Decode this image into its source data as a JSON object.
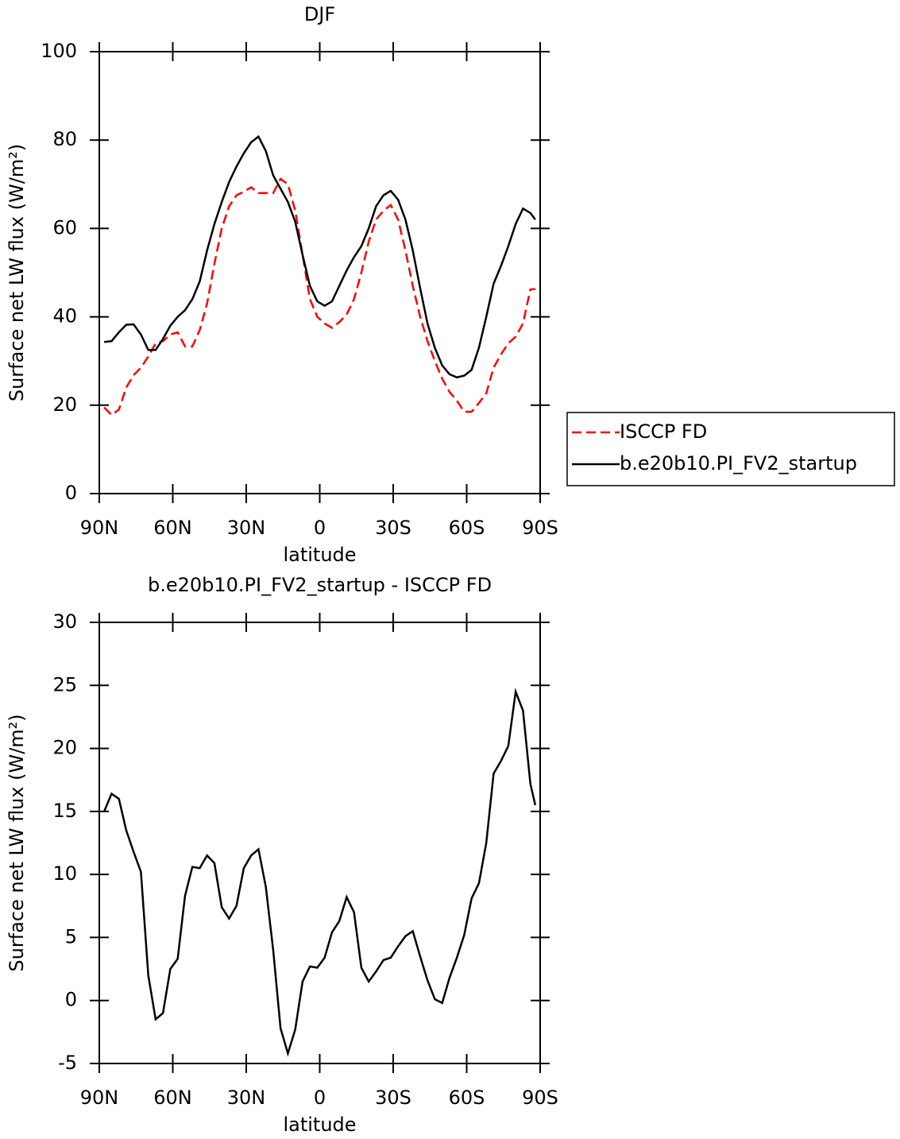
{
  "chart_data": [
    {
      "type": "line",
      "title": "DJF",
      "xlabel": "latitude",
      "ylabel": "Surface net LW flux (W/m²)",
      "x": [
        88,
        85,
        82,
        79,
        76,
        73,
        70,
        67,
        64,
        61,
        58,
        55,
        52,
        49,
        46,
        43,
        40,
        37,
        34,
        31,
        28,
        25,
        22,
        19,
        16,
        13,
        10,
        7,
        4,
        1,
        -2,
        -5,
        -8,
        -11,
        -14,
        -17,
        -20,
        -23,
        -26,
        -29,
        -32,
        -35,
        -38,
        -41,
        -44,
        -47,
        -50,
        -53,
        -56,
        -59,
        -62,
        -65,
        -68,
        -71,
        -74,
        -77,
        -80,
        -83,
        -86,
        -88
      ],
      "series": [
        {
          "name": "ISCCP FD",
          "color": "#ff0000",
          "dash": true,
          "values": [
            19.5,
            17.8,
            19,
            24,
            26.8,
            28.5,
            31,
            34,
            34.5,
            36,
            36.5,
            33.3,
            33.3,
            37,
            43,
            52,
            60,
            65,
            67.5,
            68.3,
            69.3,
            68,
            68,
            68,
            71.2,
            70,
            64,
            54,
            44,
            40,
            38.5,
            37.5,
            38.8,
            40.5,
            44,
            50,
            57,
            62,
            64,
            65.3,
            62,
            55,
            47,
            40,
            34.5,
            30,
            26,
            23,
            21,
            18.5,
            18.5,
            20.5,
            22.7,
            28.5,
            31.5,
            34,
            35.5,
            38.5,
            46.2,
            46.3
          ]
        },
        {
          "name": "b.e20b10.PI_FV2_startup",
          "color": "#000000",
          "dash": false,
          "values": [
            34.3,
            34.5,
            36.5,
            38.2,
            38.3,
            36,
            32.5,
            32.5,
            35,
            38,
            40,
            41.5,
            44,
            48,
            55,
            61,
            66,
            70.5,
            74,
            77,
            79.5,
            80.8,
            77.5,
            72,
            69,
            66,
            61.5,
            54,
            47,
            43.5,
            42.5,
            43.5,
            47,
            50.5,
            53.5,
            56,
            60,
            65,
            67.5,
            68.5,
            66.5,
            62,
            55,
            46.5,
            38.5,
            33,
            29,
            27,
            26.3,
            26.7,
            28,
            33,
            40,
            47.5,
            51.5,
            56,
            61,
            64.5,
            63.5,
            62
          ]
        }
      ],
      "xlim": [
        90,
        -90
      ],
      "xticks": [
        {
          "value": 90,
          "label": "90N"
        },
        {
          "value": 60,
          "label": "60N"
        },
        {
          "value": 30,
          "label": "30N"
        },
        0,
        {
          "value": -30,
          "label": "30S"
        },
        {
          "value": -60,
          "label": "60S"
        },
        {
          "value": -90,
          "label": "90S"
        }
      ],
      "ylim": [
        0,
        100
      ],
      "yticks": [
        0,
        20,
        40,
        60,
        80,
        100
      ],
      "legend": "right"
    },
    {
      "type": "line",
      "title": "b.e20b10.PI_FV2_startup - ISCCP FD",
      "xlabel": "latitude",
      "ylabel": "Surface net LW flux (W/m²)",
      "x": [
        88,
        85,
        82,
        79,
        76,
        73,
        70,
        67,
        64,
        61,
        58,
        55,
        52,
        49,
        46,
        43,
        40,
        37,
        34,
        31,
        28,
        25,
        22,
        19,
        16,
        13,
        10,
        7,
        4,
        1,
        -2,
        -5,
        -8,
        -11,
        -14,
        -17,
        -20,
        -23,
        -26,
        -29,
        -32,
        -35,
        -38,
        -41,
        -44,
        -47,
        -50,
        -53,
        -56,
        -59,
        -62,
        -65,
        -68,
        -71,
        -74,
        -77,
        -80,
        -83,
        -86,
        -88
      ],
      "series": [
        {
          "color": "#000000",
          "dash": false,
          "values": [
            15,
            16.4,
            16,
            13.5,
            11.8,
            10.2,
            2,
            -1.5,
            -1,
            2.5,
            3.3,
            8.3,
            10.6,
            10.5,
            11.5,
            10.9,
            7.4,
            6.5,
            7.5,
            10.5,
            11.5,
            12,
            9,
            4,
            -2.2,
            -4.2,
            -2.3,
            1.5,
            2.7,
            2.6,
            3.4,
            5.4,
            6.3,
            8.2,
            7,
            2.6,
            1.5,
            2.3,
            3.2,
            3.4,
            4.3,
            5.1,
            5.5,
            3.5,
            1.6,
            0.1,
            -0.2,
            1.8,
            3.4,
            5.2,
            8.1,
            9.3,
            12.5,
            18,
            19,
            20.2,
            24.5,
            23,
            17.2,
            15.5
          ]
        }
      ],
      "xlim": [
        90,
        -90
      ],
      "xticks": [
        {
          "value": 90,
          "label": "90N"
        },
        {
          "value": 60,
          "label": "60N"
        },
        {
          "value": 30,
          "label": "30N"
        },
        0,
        {
          "value": -30,
          "label": "30S"
        },
        {
          "value": -60,
          "label": "60S"
        },
        {
          "value": -90,
          "label": "90S"
        }
      ],
      "ylim": [
        -5,
        30
      ],
      "yticks": [
        -5,
        0,
        5,
        10,
        15,
        20,
        25,
        30
      ]
    }
  ]
}
